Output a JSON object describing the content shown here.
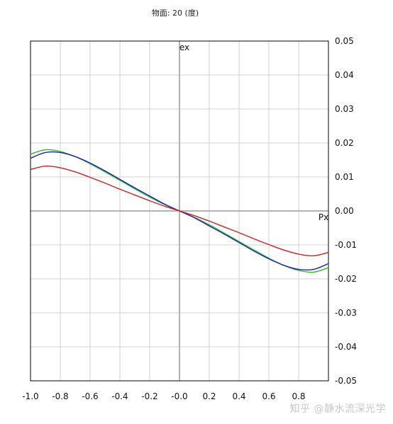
{
  "chart_data": {
    "type": "line",
    "title": "物面: 20 (度)",
    "xlabel": "Px",
    "ylabel": "ex",
    "xlim": [
      -1.0,
      1.0
    ],
    "ylim": [
      -0.05,
      0.05
    ],
    "xticks": [
      -1.0,
      -0.8,
      -0.6,
      -0.4,
      -0.2,
      0.0,
      0.2,
      0.4,
      0.6,
      0.8
    ],
    "xtick_labels": [
      "-1.0",
      "-0.8",
      "-0.6",
      "-0.4",
      "-0.2",
      "-0.0",
      "0.2",
      "0.4",
      "0.6",
      "0.8"
    ],
    "yticks": [
      0.05,
      0.04,
      0.03,
      0.02,
      0.01,
      0.0,
      -0.01,
      -0.02,
      -0.03,
      -0.04,
      -0.05
    ],
    "ytick_labels": [
      "0.05",
      "0.04",
      "0.03",
      "0.02",
      "0.01",
      "0.00",
      "-0.01",
      "-0.02",
      "-0.03",
      "-0.04",
      "-0.05"
    ],
    "grid": true,
    "x": [
      -1.0,
      -0.9,
      -0.8,
      -0.7,
      -0.6,
      -0.5,
      -0.4,
      -0.3,
      -0.2,
      -0.1,
      0.0,
      0.1,
      0.2,
      0.3,
      0.4,
      0.5,
      0.6,
      0.7,
      0.8,
      0.9,
      1.0
    ],
    "series": [
      {
        "color": "#2020c0",
        "values": [
          0.0155,
          0.0172,
          0.0172,
          0.016,
          0.0141,
          0.0118,
          0.0093,
          0.0068,
          0.0044,
          0.002,
          0.0,
          -0.002,
          -0.0044,
          -0.0068,
          -0.0093,
          -0.0118,
          -0.0141,
          -0.016,
          -0.0172,
          -0.0172,
          -0.0155
        ]
      },
      {
        "color": "#20c020",
        "values": [
          0.0167,
          0.018,
          0.0175,
          0.016,
          0.0139,
          0.0115,
          0.009,
          0.0065,
          0.0041,
          0.0019,
          0.0,
          -0.0019,
          -0.0041,
          -0.0065,
          -0.009,
          -0.0115,
          -0.0139,
          -0.016,
          -0.0175,
          -0.018,
          -0.0167
        ]
      },
      {
        "color": "#d02020",
        "values": [
          0.0122,
          0.0132,
          0.0127,
          0.0115,
          0.0099,
          0.0082,
          0.0064,
          0.0047,
          0.003,
          0.0014,
          0.0,
          -0.0014,
          -0.003,
          -0.0047,
          -0.0064,
          -0.0082,
          -0.0099,
          -0.0115,
          -0.0127,
          -0.0132,
          -0.0122
        ]
      }
    ]
  },
  "watermark": "知乎 @静水流深光学"
}
